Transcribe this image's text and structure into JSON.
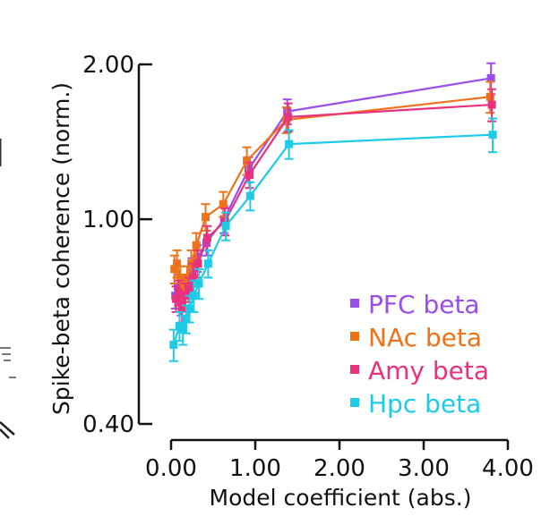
{
  "chart_data": {
    "type": "line",
    "xlabel": "Model coefficient (abs.)",
    "ylabel": "Spike-beta coherence (norm.)",
    "xlim": [
      0,
      4.0
    ],
    "ylim": [
      0.4,
      2.0
    ],
    "xticks": [
      "0.00",
      "1.00",
      "2.00",
      "3.00",
      "4.00"
    ],
    "yticks": [
      "0.40",
      "1.00",
      "2.00"
    ],
    "legend_position": "bottom-right",
    "series": [
      {
        "name": "PFC beta",
        "color": "#9b4dea",
        "x": [
          0.05,
          0.08,
          0.12,
          0.16,
          0.2,
          0.25,
          0.31,
          0.42,
          0.63,
          0.92,
          1.38,
          3.8
        ],
        "y": [
          0.71,
          0.74,
          0.69,
          0.72,
          0.74,
          0.79,
          0.84,
          0.9,
          1.0,
          1.25,
          1.62,
          1.88
        ],
        "err": [
          0.04,
          0.04,
          0.04,
          0.04,
          0.04,
          0.05,
          0.05,
          0.05,
          0.06,
          0.07,
          0.09,
          0.13
        ]
      },
      {
        "name": "NAc beta",
        "color": "#f07218",
        "x": [
          0.04,
          0.07,
          0.11,
          0.15,
          0.19,
          0.24,
          0.3,
          0.41,
          0.62,
          0.9,
          1.37,
          3.79
        ],
        "y": [
          0.8,
          0.82,
          0.77,
          0.74,
          0.77,
          0.82,
          0.89,
          1.01,
          1.07,
          1.3,
          1.56,
          1.73
        ],
        "err": [
          0.05,
          0.05,
          0.04,
          0.04,
          0.04,
          0.05,
          0.05,
          0.06,
          0.06,
          0.08,
          0.09,
          0.12
        ]
      },
      {
        "name": "Amy beta",
        "color": "#e8327c",
        "x": [
          0.06,
          0.09,
          0.13,
          0.17,
          0.21,
          0.26,
          0.32,
          0.43,
          0.64,
          0.93,
          1.39,
          3.81
        ],
        "y": [
          0.7,
          0.72,
          0.67,
          0.71,
          0.73,
          0.77,
          0.82,
          0.92,
          0.99,
          1.22,
          1.58,
          1.67
        ],
        "err": [
          0.04,
          0.04,
          0.04,
          0.04,
          0.04,
          0.05,
          0.05,
          0.05,
          0.06,
          0.07,
          0.1,
          0.12
        ]
      },
      {
        "name": "Hpc beta",
        "color": "#1ecbe6",
        "x": [
          0.03,
          0.1,
          0.14,
          0.18,
          0.22,
          0.27,
          0.33,
          0.44,
          0.65,
          0.94,
          1.4,
          3.82
        ],
        "y": [
          0.57,
          0.62,
          0.61,
          0.64,
          0.67,
          0.71,
          0.75,
          0.82,
          0.97,
          1.11,
          1.4,
          1.46
        ],
        "err": [
          0.04,
          0.04,
          0.04,
          0.04,
          0.04,
          0.05,
          0.05,
          0.05,
          0.06,
          0.07,
          0.09,
          0.11
        ]
      }
    ]
  }
}
